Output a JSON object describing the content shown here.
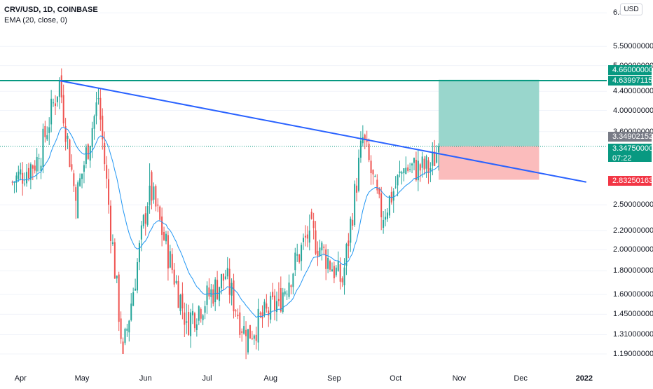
{
  "legend": {
    "symbol": "CRV/USD, 1D, COINBASE",
    "indicator": "EMA (20, close, 0)"
  },
  "currency": "USD",
  "price_ticks": [
    "6.5",
    "5.50000000",
    "5.00000000",
    "4.40000000",
    "4.00000000",
    "3.60000000",
    "2.50000000",
    "2.20000000",
    "2.00000000",
    "1.80000000",
    "1.60000000",
    "1.45000000",
    "1.31000000",
    "1.19000000"
  ],
  "time_ticks": [
    "Apr",
    "May",
    "Jun",
    "Jul",
    "Aug",
    "Sep",
    "Oct",
    "Nov",
    "Dec",
    "2022"
  ],
  "tags": {
    "target_price": "4.66000000",
    "resistance_price": "4.63997115",
    "high_marker": "3.34902152",
    "last_price": "3.34750000",
    "countdown": "07:22",
    "stop_price": "2.83250163"
  },
  "colors": {
    "up": "#26a69a",
    "down": "#ef5350",
    "ema": "#2196f3",
    "trendline": "#2962ff",
    "resistance": "#089981",
    "profit_zone": "#99d6cc",
    "loss_zone": "#fbbcbc",
    "stop_tag": "#f23645",
    "last_tag": "#089981",
    "marker_tag": "#787b86"
  },
  "chart_data": {
    "type": "candlestick",
    "symbol": "CRV/USD",
    "interval": "1D",
    "exchange": "COINBASE",
    "x_range": [
      "2021-03-22",
      "2022-01-12"
    ],
    "y_scale": "log",
    "ohlc_sample": [
      {
        "date": "2021-03-28",
        "close": 2.8
      },
      {
        "date": "2021-04-10",
        "close": 3.15
      },
      {
        "date": "2021-04-20",
        "close": 4.63
      },
      {
        "date": "2021-04-28",
        "close": 2.55
      },
      {
        "date": "2021-05-09",
        "close": 4.25
      },
      {
        "date": "2021-05-21",
        "close": 1.19
      },
      {
        "date": "2021-06-03",
        "close": 2.75
      },
      {
        "date": "2021-06-21",
        "close": 1.4
      },
      {
        "date": "2021-07-10",
        "close": 1.75
      },
      {
        "date": "2021-07-20",
        "close": 1.3
      },
      {
        "date": "2021-08-05",
        "close": 1.55
      },
      {
        "date": "2021-08-20",
        "close": 2.2
      },
      {
        "date": "2021-09-05",
        "close": 1.7
      },
      {
        "date": "2021-09-15",
        "close": 3.5
      },
      {
        "date": "2021-09-24",
        "close": 2.35
      },
      {
        "date": "2021-10-05",
        "close": 3.0
      },
      {
        "date": "2021-10-18",
        "close": 3.0
      },
      {
        "date": "2021-10-22",
        "close": 3.3475
      }
    ],
    "ema_period": 20,
    "trendline": {
      "from": {
        "date": "2021-04-20",
        "price": 4.64
      },
      "to": {
        "date": "2022-01-02",
        "price": 2.8
      }
    },
    "horizontal_level": 4.63997115,
    "position": {
      "entry": 3.3475,
      "target": 4.66,
      "stop": 2.83250163,
      "from": "2021-10-22",
      "to": "2021-12-10"
    }
  }
}
